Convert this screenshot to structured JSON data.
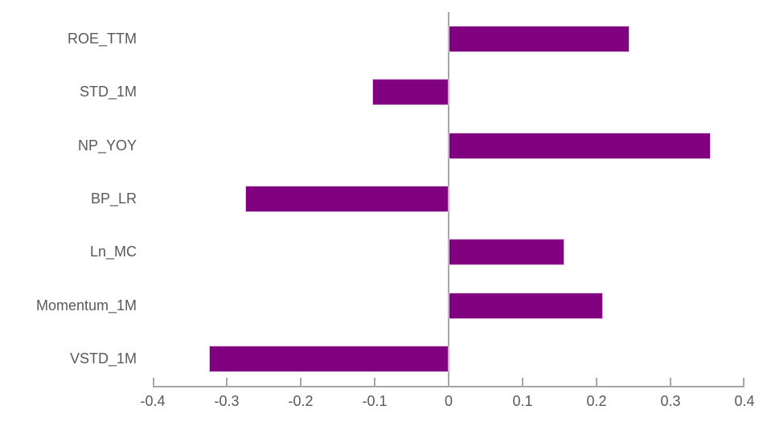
{
  "chart_data": {
    "type": "bar",
    "orientation": "horizontal",
    "title": "",
    "xlabel": "",
    "ylabel": "",
    "categories": [
      "ROE_TTM",
      "STD_1M",
      "NP_YOY",
      "BP_LR",
      "Ln_MC",
      "Momentum_1M",
      "VSTD_1M"
    ],
    "values": [
      0.245,
      -0.103,
      0.354,
      -0.275,
      0.157,
      0.209,
      -0.324
    ],
    "xlim": [
      -0.4,
      0.4
    ],
    "x_ticks": [
      -0.4,
      -0.3,
      -0.2,
      -0.1,
      0,
      0.1,
      0.2,
      0.3,
      0.4
    ],
    "x_tick_labels": [
      "-0.4",
      "-0.3",
      "-0.2",
      "-0.1",
      "0",
      "0.1",
      "0.2",
      "0.3",
      "0.4"
    ],
    "grid": "off",
    "legend": "none",
    "colors": {
      "bar_fill": "#800080",
      "bar_border": "#e3c6e3",
      "axis": "#a6a6a6",
      "text": "#595959",
      "background": "#ffffff"
    }
  }
}
